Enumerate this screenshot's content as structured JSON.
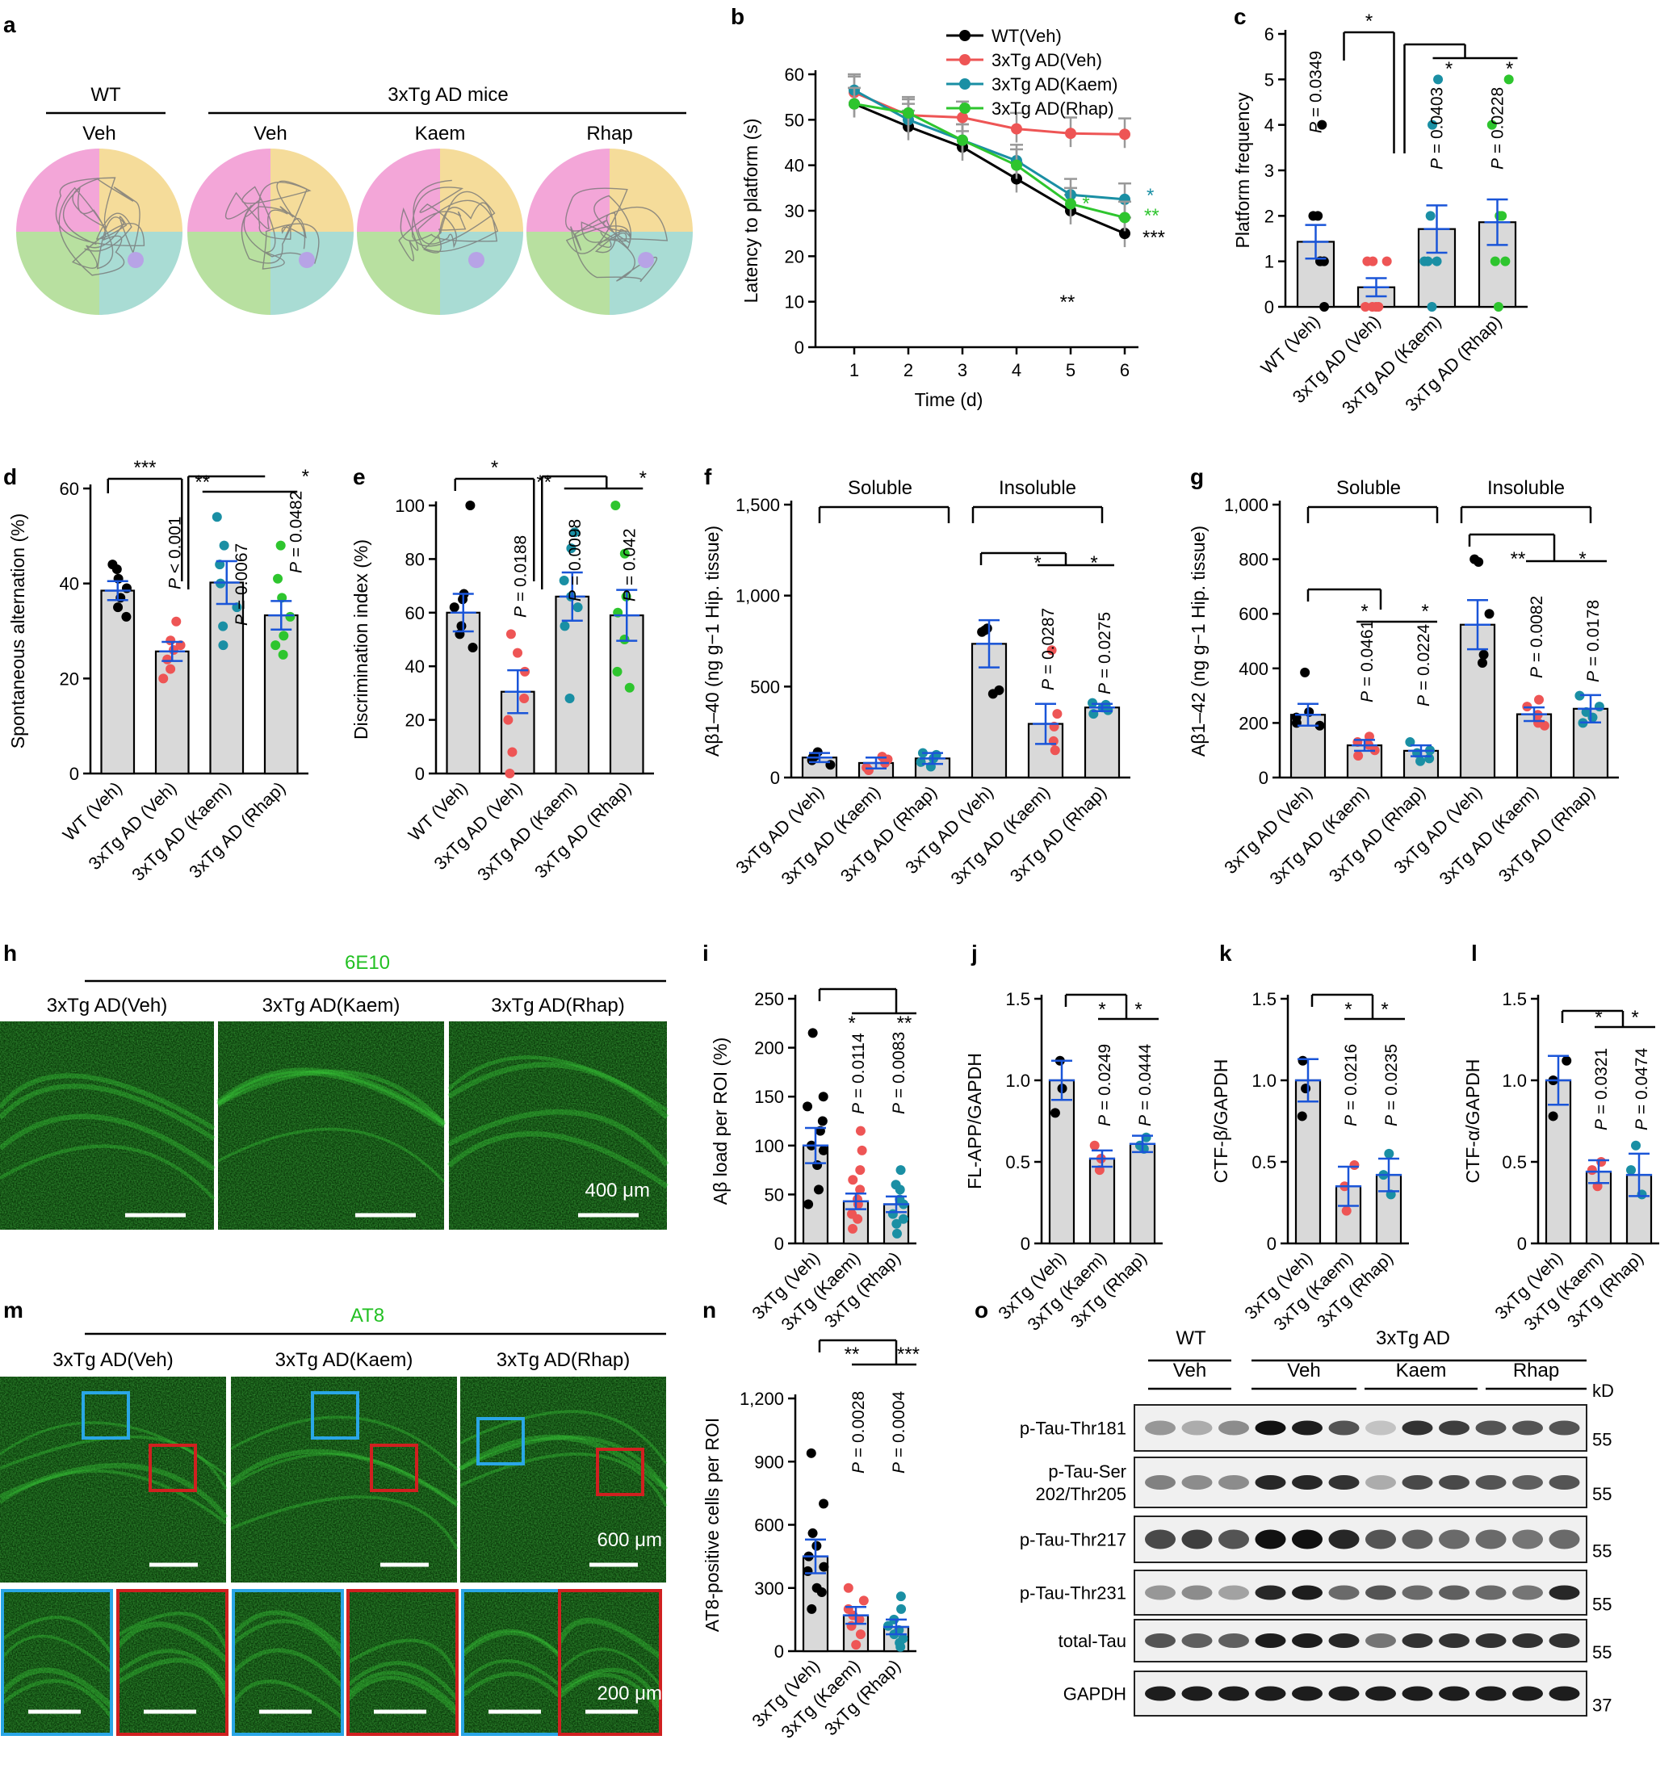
{
  "colors": {
    "wt": "#000000",
    "veh": "#ee5555",
    "kaem": "#1a8fa4",
    "rhap": "#2ec52e",
    "sem": "#1a55d8",
    "grey": "#999999",
    "bar": "#d9d9d9",
    "green": "#22c022"
  },
  "a": {
    "panel": "a",
    "wt": "WT",
    "mice": "3xTg AD mice",
    "lab_wt": "Veh",
    "lab_veh": "Veh",
    "lab_kaem": "Kaem",
    "lab_rhap": "Rhap"
  },
  "b": {
    "panel": "b",
    "ylabel": "Latency to platform (s)",
    "xlabel": "Time (d)",
    "legend": [
      "WT(Veh)",
      "3xTg AD(Veh)",
      "3xTg AD(Kaem)",
      "3xTg AD(Rhap)"
    ],
    "x": [
      1,
      2,
      3,
      4,
      5,
      6
    ],
    "yticks": [
      "0",
      "10",
      "20",
      "30",
      "40",
      "50",
      "60"
    ],
    "series": [
      {
        "name": "WT(Veh)",
        "values": [
          53.5,
          48.5,
          44,
          37,
          30,
          25
        ]
      },
      {
        "name": "3xTg AD(Veh)",
        "values": [
          56,
          51,
          50.5,
          48,
          47,
          46.8
        ]
      },
      {
        "name": "3xTg AD(Kaem)",
        "values": [
          56.5,
          50,
          45.5,
          41,
          33.5,
          32.5
        ]
      },
      {
        "name": "3xTg AD(Rhap)",
        "values": [
          53.5,
          51.5,
          45.5,
          40,
          31.5,
          28.5
        ]
      }
    ],
    "sig": {
      "d5_wt": "**",
      "d5_kaem": "*",
      "d6_kaem": "*",
      "d6_rhap": "**",
      "d6_wt": "***"
    }
  },
  "c": {
    "panel": "c",
    "ylabel": "Platform frequency",
    "yticks": [
      "0",
      "1",
      "2",
      "3",
      "4",
      "5",
      "6"
    ],
    "cats": [
      "WT (Veh)",
      "3xTg AD (Veh)",
      "3xTg AD (Kaem)",
      "3xTg AD (Rhap)"
    ],
    "values": [
      1.43,
      0.43,
      1.71,
      1.86
    ],
    "sem": [
      0.37,
      0.2,
      0.52,
      0.5
    ],
    "p": [
      "P = 0.0349",
      "P = 0.0403",
      "P = 0.0228"
    ],
    "stars": [
      "*",
      "*",
      "*"
    ]
  },
  "d": {
    "panel": "d",
    "ylabel": "Spontaneous alternation (%)",
    "yticks": [
      "0",
      "20",
      "40",
      "60"
    ],
    "cats": [
      "WT (Veh)",
      "3xTg AD (Veh)",
      "3xTg AD (Kaem)",
      "3xTg AD (Rhap)"
    ],
    "values": [
      38.5,
      25.7,
      40.2,
      33.3
    ],
    "sem": [
      2,
      2,
      4.5,
      3
    ],
    "p": [
      "P < 0.001",
      "P = 0.0067",
      "P = 0.0482"
    ],
    "stars": [
      "***",
      "**",
      "*"
    ]
  },
  "e": {
    "panel": "e",
    "ylabel": "Discrimination index (%)",
    "yticks": [
      "0",
      "20",
      "40",
      "60",
      "80",
      "100"
    ],
    "cats": [
      "WT (Veh)",
      "3xTg AD (Veh)",
      "3xTg AD (Kaem)",
      "3xTg AD (Rhap)"
    ],
    "values": [
      60,
      30.5,
      66,
      59
    ],
    "sem": [
      7,
      8,
      9,
      9.5
    ],
    "p": [
      "P = 0.0188",
      "P = 0.0098",
      "P = 0.042"
    ],
    "stars": [
      "*",
      "**",
      "*"
    ]
  },
  "f": {
    "panel": "f",
    "ylabel": "Aβ1–40 (ng g−1 Hip. tissue)",
    "yticks": [
      "0",
      "500",
      "1,000",
      "1,500"
    ],
    "groups": [
      "Soluble",
      "Insoluble"
    ],
    "cats": [
      "3xTg AD (Veh)",
      "3xTg AD (Kaem)",
      "3xTg AD (Rhap)",
      "3xTg AD (Veh)",
      "3xTg AD (Kaem)",
      "3xTg AD (Rhap)"
    ],
    "values": [
      110,
      80,
      105,
      735,
      295,
      385
    ],
    "sem": [
      25,
      30,
      30,
      130,
      110,
      20
    ],
    "p": [
      "P = 0.0287",
      "P = 0.0275"
    ],
    "stars": [
      "*",
      "*"
    ]
  },
  "g": {
    "panel": "g",
    "ylabel": "Aβ1–42 (ng g−1 Hip. tissue)",
    "yticks": [
      "0",
      "200",
      "400",
      "600",
      "800",
      "1,000"
    ],
    "groups": [
      "Soluble",
      "Insoluble"
    ],
    "cats": [
      "3xTg AD (Veh)",
      "3xTg AD (Kaem)",
      "3xTg AD (Rhap)",
      "3xTg AD (Veh)",
      "3xTg AD (Kaem)",
      "3xTg AD (Rhap)"
    ],
    "values": [
      230,
      118,
      98,
      560,
      232,
      252
    ],
    "sem": [
      40,
      20,
      20,
      90,
      25,
      50
    ],
    "p": [
      "P = 0.0461",
      "P = 0.0224",
      "P = 0.0082",
      "P = 0.0178"
    ],
    "stars": [
      "*",
      "*",
      "**",
      "*"
    ]
  },
  "h": {
    "panel": "h",
    "stain": "6E10",
    "labels": [
      "3xTg AD(Veh)",
      "3xTg AD(Kaem)",
      "3xTg AD(Rhap)"
    ],
    "scale": "400 μm"
  },
  "i": {
    "panel": "i",
    "ylabel": "Aβ load per ROI (%)",
    "yticks": [
      "0",
      "50",
      "100",
      "150",
      "200",
      "250"
    ],
    "cats": [
      "3xTg (Veh)",
      "3xTg (Kaem)",
      "3xTg (Rhap)"
    ],
    "values": [
      100,
      43,
      40
    ],
    "sem": [
      18,
      8,
      8
    ],
    "p": [
      "P = 0.0114",
      "P = 0.0083"
    ],
    "stars": [
      "*",
      "**"
    ]
  },
  "j": {
    "panel": "j",
    "ylabel": "FL-APP/GAPDH",
    "yticks": [
      "0",
      "0.5",
      "1.0",
      "1.5"
    ],
    "cats": [
      "3xTg (Veh)",
      "3xTg (Kaem)",
      "3xTg (Rhap)"
    ],
    "values": [
      1.0,
      0.52,
      0.61
    ],
    "sem": [
      0.12,
      0.05,
      0.05
    ],
    "p": [
      "P = 0.0249",
      "P = 0.0444"
    ],
    "stars": [
      "*",
      "*"
    ]
  },
  "k": {
    "panel": "k",
    "ylabel": "CTF-β/GAPDH",
    "yticks": [
      "0",
      "0.5",
      "1.0",
      "1.5"
    ],
    "cats": [
      "3xTg (Veh)",
      "3xTg (Kaem)",
      "3xTg (Rhap)"
    ],
    "values": [
      1.0,
      0.35,
      0.42
    ],
    "sem": [
      0.13,
      0.12,
      0.1
    ],
    "p": [
      "P = 0.0216",
      "P = 0.0235"
    ],
    "stars": [
      "*",
      "*"
    ]
  },
  "l": {
    "panel": "l",
    "ylabel": "CTF-α/GAPDH",
    "yticks": [
      "0",
      "0.5",
      "1.0",
      "1.5"
    ],
    "cats": [
      "3xTg (Veh)",
      "3xTg (Kaem)",
      "3xTg (Rhap)"
    ],
    "values": [
      1.0,
      0.44,
      0.42
    ],
    "sem": [
      0.15,
      0.07,
      0.13
    ],
    "p": [
      "P = 0.0321",
      "P = 0.0474"
    ],
    "stars": [
      "*",
      "*"
    ]
  },
  "m": {
    "panel": "m",
    "stain": "AT8",
    "labels": [
      "3xTg AD(Veh)",
      "3xTg AD(Kaem)",
      "3xTg AD(Rhap)"
    ],
    "scale1": "600 μm",
    "scale2": "200 μm"
  },
  "n": {
    "panel": "n",
    "ylabel": "AT8-positive cells per ROI",
    "yticks": [
      "0",
      "300",
      "600",
      "900",
      "1,200"
    ],
    "cats": [
      "3xTg (Veh)",
      "3xTg (Kaem)",
      "3xTg (Rhap)"
    ],
    "values": [
      450,
      170,
      115
    ],
    "sem": [
      80,
      40,
      35
    ],
    "p": [
      "P = 0.0028",
      "P = 0.0004"
    ],
    "stars": [
      "**",
      "***"
    ]
  },
  "o": {
    "panel": "o",
    "wt": "WT",
    "ad": "3xTg AD",
    "groups": [
      "Veh",
      "Veh",
      "Kaem",
      "Rhap"
    ],
    "kd": "kD",
    "rows": [
      {
        "name": "p-Tau-Thr181",
        "kd": "55"
      },
      {
        "name": "p-Tau-Ser\n202/Thr205",
        "kd": "55"
      },
      {
        "name": "p-Tau-Thr217",
        "kd": "55"
      },
      {
        "name": "p-Tau-Thr231",
        "kd": "55"
      },
      {
        "name": "total-Tau",
        "kd": "55"
      },
      {
        "name": "GAPDH",
        "kd": "37"
      }
    ]
  }
}
